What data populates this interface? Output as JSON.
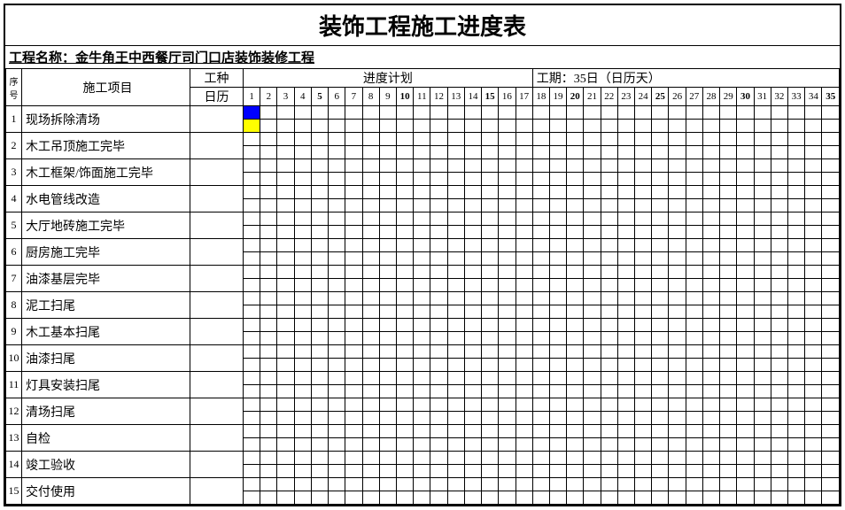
{
  "title": "装饰工程施工进度表",
  "project_label": "工程名称：",
  "project_name": "金牛角王中西餐厅司门口店装饰装修工程",
  "headers": {
    "seq": "序号",
    "item": "施工项目",
    "type": "工种",
    "calendar": "日历",
    "plan": "进度计划",
    "duration": "工期：35日（日历天）"
  },
  "days": [
    {
      "n": "1",
      "b": false
    },
    {
      "n": "2",
      "b": false
    },
    {
      "n": "3",
      "b": false
    },
    {
      "n": "4",
      "b": false
    },
    {
      "n": "5",
      "b": true
    },
    {
      "n": "6",
      "b": false
    },
    {
      "n": "7",
      "b": false
    },
    {
      "n": "8",
      "b": false
    },
    {
      "n": "9",
      "b": false
    },
    {
      "n": "10",
      "b": true
    },
    {
      "n": "11",
      "b": false
    },
    {
      "n": "12",
      "b": false
    },
    {
      "n": "13",
      "b": false
    },
    {
      "n": "14",
      "b": false
    },
    {
      "n": "15",
      "b": true
    },
    {
      "n": "16",
      "b": false
    },
    {
      "n": "17",
      "b": false
    },
    {
      "n": "18",
      "b": false
    },
    {
      "n": "19",
      "b": false
    },
    {
      "n": "20",
      "b": true
    },
    {
      "n": "21",
      "b": false
    },
    {
      "n": "22",
      "b": false
    },
    {
      "n": "23",
      "b": false
    },
    {
      "n": "24",
      "b": false
    },
    {
      "n": "25",
      "b": true
    },
    {
      "n": "26",
      "b": false
    },
    {
      "n": "27",
      "b": false
    },
    {
      "n": "28",
      "b": false
    },
    {
      "n": "29",
      "b": false
    },
    {
      "n": "30",
      "b": true
    },
    {
      "n": "31",
      "b": false
    },
    {
      "n": "32",
      "b": false
    },
    {
      "n": "33",
      "b": false
    },
    {
      "n": "34",
      "b": false
    },
    {
      "n": "35",
      "b": true
    }
  ],
  "rows": [
    {
      "seq": "1",
      "item": "现场拆除清场",
      "fills": {
        "top": {
          "1": "#0000ff"
        },
        "bot": {
          "1": "#ffff00"
        }
      }
    },
    {
      "seq": "2",
      "item": "木工吊顶施工完毕",
      "fills": {
        "top": {},
        "bot": {}
      }
    },
    {
      "seq": "3",
      "item": "木工框架/饰面施工完毕",
      "fills": {
        "top": {},
        "bot": {}
      }
    },
    {
      "seq": "4",
      "item": "水电管线改造",
      "fills": {
        "top": {},
        "bot": {}
      }
    },
    {
      "seq": "5",
      "item": "大厅地砖施工完毕",
      "fills": {
        "top": {},
        "bot": {}
      }
    },
    {
      "seq": "6",
      "item": "厨房施工完毕",
      "fills": {
        "top": {},
        "bot": {}
      }
    },
    {
      "seq": "7",
      "item": "油漆基层完毕",
      "fills": {
        "top": {},
        "bot": {}
      }
    },
    {
      "seq": "8",
      "item": "泥工扫尾",
      "fills": {
        "top": {},
        "bot": {}
      }
    },
    {
      "seq": "9",
      "item": "木工基本扫尾",
      "fills": {
        "top": {},
        "bot": {}
      }
    },
    {
      "seq": "10",
      "item": "油漆扫尾",
      "fills": {
        "top": {},
        "bot": {}
      }
    },
    {
      "seq": "11",
      "item": "灯具安装扫尾",
      "fills": {
        "top": {},
        "bot": {}
      }
    },
    {
      "seq": "12",
      "item": "清场扫尾",
      "fills": {
        "top": {},
        "bot": {}
      }
    },
    {
      "seq": "13",
      "item": "自检",
      "fills": {
        "top": {},
        "bot": {}
      }
    },
    {
      "seq": "14",
      "item": "竣工验收",
      "fills": {
        "top": {},
        "bot": {}
      }
    },
    {
      "seq": "15",
      "item": "交付使用",
      "fills": {
        "top": {},
        "bot": {}
      }
    }
  ],
  "colors": {
    "blue": "#0000ff",
    "yellow": "#ffff00",
    "border": "#000000",
    "background": "#ffffff"
  }
}
